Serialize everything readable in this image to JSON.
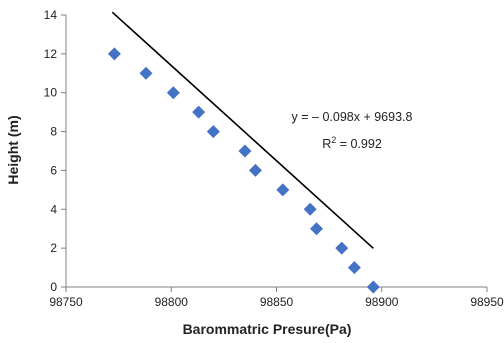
{
  "chart_data": {
    "type": "scatter",
    "xlabel": "Barommatric Presure(Pa)",
    "ylabel": "Height (m)",
    "xlim": [
      98750,
      98950
    ],
    "ylim": [
      0,
      14
    ],
    "x_ticks": [
      98750,
      98800,
      98850,
      98900,
      98950
    ],
    "y_ticks": [
      0,
      2,
      4,
      6,
      8,
      10,
      12,
      14
    ],
    "grid": false,
    "marker_color": "#4472C4",
    "trendline_color": "#000000",
    "series": [
      {
        "x": [
          98773,
          98788,
          98801,
          98813,
          98820,
          98835,
          98840,
          98853,
          98866,
          98869,
          98881,
          98887,
          98896
        ],
        "y": [
          12,
          11,
          10,
          9,
          8,
          7,
          6,
          5,
          4,
          3,
          2,
          1,
          0
        ]
      }
    ],
    "trendline": {
      "slope": -0.098,
      "intercept": 9693.8,
      "x_range": [
        98772,
        98896
      ],
      "equation": "y = – 0.098x + 9693.8",
      "r2_prefix": "R",
      "r2_sup": "2",
      "r2_value": " = 0.992"
    }
  }
}
